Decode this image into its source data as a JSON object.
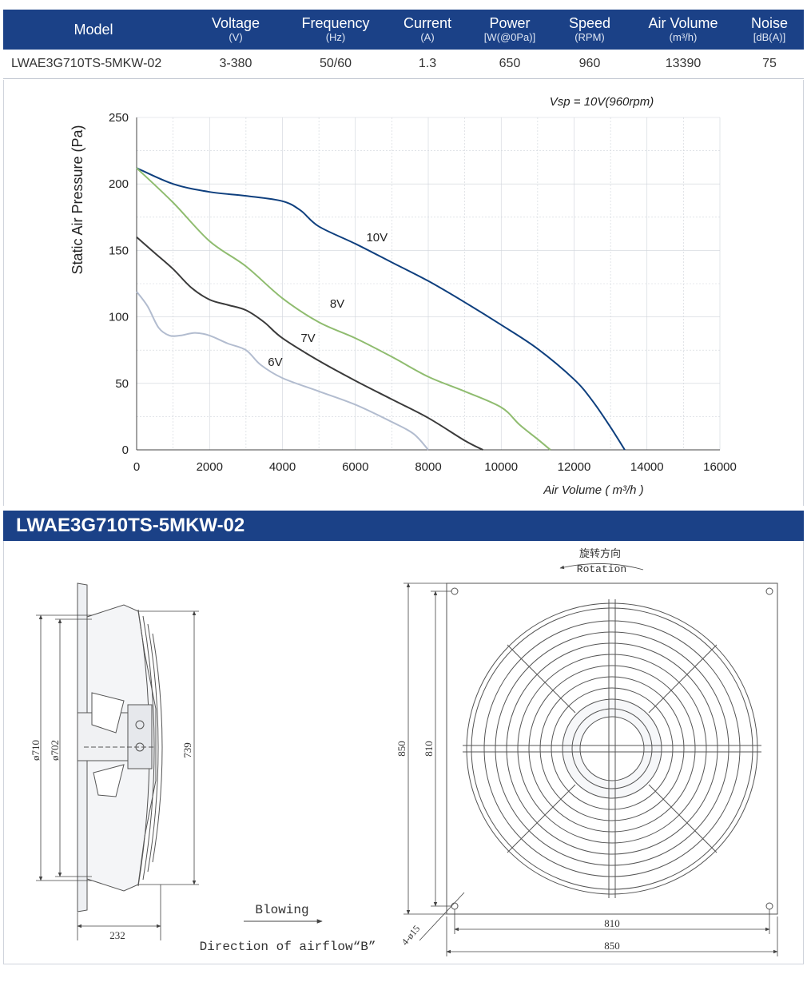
{
  "spec_table": {
    "headers": [
      {
        "label": "Model",
        "unit": ""
      },
      {
        "label": "Voltage",
        "unit": "(V)"
      },
      {
        "label": "Frequency",
        "unit": "(Hz)"
      },
      {
        "label": "Current",
        "unit": "(A)"
      },
      {
        "label": "Power",
        "unit": "[W(@0Pa)]"
      },
      {
        "label": "Speed",
        "unit": "(RPM)"
      },
      {
        "label": "Air Volume",
        "unit": "(m³/h)"
      },
      {
        "label": "Noise",
        "unit": "[dB(A)]"
      }
    ],
    "row": {
      "model": "LWAE3G710TS-5MKW-02",
      "voltage": "3-380",
      "frequency": "50/60",
      "current": "1.3",
      "power": "650",
      "speed": "960",
      "air_volume": "13390",
      "noise": "75"
    }
  },
  "chart_data": {
    "type": "line",
    "title": "",
    "annotation": "Vsp = 10V(960rpm)",
    "xlabel": "Air Volume ( m³/h )",
    "ylabel": "Static Air Pressure  (Pa)",
    "xlim": [
      0,
      16000
    ],
    "ylim": [
      0,
      250
    ],
    "xticks": [
      0,
      2000,
      4000,
      6000,
      8000,
      10000,
      12000,
      14000,
      16000
    ],
    "yticks": [
      0,
      50,
      100,
      150,
      200,
      250
    ],
    "grid": true,
    "series": [
      {
        "name": "10V",
        "color": "#0e3f7e",
        "x": [
          0,
          1000,
          2000,
          3000,
          4000,
          4500,
          5000,
          6000,
          7000,
          8000,
          9000,
          10000,
          11000,
          12000,
          12500,
          13000,
          13390
        ],
        "y": [
          212,
          200,
          194,
          191,
          187,
          180,
          168,
          155,
          141,
          127,
          111,
          94,
          76,
          53,
          37,
          17,
          0
        ]
      },
      {
        "name": "8V",
        "color": "#8fbc6f",
        "x": [
          0,
          1000,
          2000,
          3000,
          4000,
          5000,
          6000,
          7000,
          8000,
          9000,
          10000,
          10500,
          11000,
          11350
        ],
        "y": [
          212,
          186,
          157,
          138,
          114,
          96,
          84,
          70,
          55,
          44,
          32,
          19,
          8,
          0
        ]
      },
      {
        "name": "7V",
        "color": "#3a3a3a",
        "x": [
          0,
          500,
          1000,
          1500,
          2000,
          2500,
          3000,
          3500,
          4000,
          5000,
          6000,
          7000,
          8000,
          9000,
          9500
        ],
        "y": [
          160,
          148,
          136,
          122,
          113,
          109,
          105,
          96,
          84,
          67,
          52,
          38,
          24,
          7,
          0
        ]
      },
      {
        "name": "6V",
        "color": "#b2bccf",
        "x": [
          0,
          300,
          600,
          900,
          1200,
          1600,
          2000,
          2500,
          3000,
          3400,
          4000,
          5000,
          6000,
          7000,
          7600,
          8000
        ],
        "y": [
          119,
          108,
          92,
          86,
          86,
          88,
          86,
          80,
          75,
          64,
          54,
          44,
          34,
          21,
          12,
          0
        ]
      }
    ],
    "curve_labels": [
      {
        "text": "10V",
        "x": 6300,
        "y": 157
      },
      {
        "text": "8V",
        "x": 5300,
        "y": 107
      },
      {
        "text": "7V",
        "x": 4500,
        "y": 81
      },
      {
        "text": "6V",
        "x": 3600,
        "y": 63
      }
    ]
  },
  "section_title": "LWAE3G710TS-5MKW-02",
  "drawing": {
    "rotation_cn": "旋转方向",
    "rotation_en": "Rotation",
    "blowing": "Blowing",
    "airflow": "Direction of airflow“B”",
    "dims_side": {
      "d710": "ø710",
      "d702": "ø702",
      "h739": "739",
      "w232": "232"
    },
    "dims_front": {
      "h850": "850",
      "h810": "810",
      "w810": "810",
      "w850": "850",
      "holes": "4-ø15"
    }
  },
  "colors": {
    "header_bg": "#1b4187",
    "grid": "#cfd3da",
    "line_art": "#555555"
  }
}
